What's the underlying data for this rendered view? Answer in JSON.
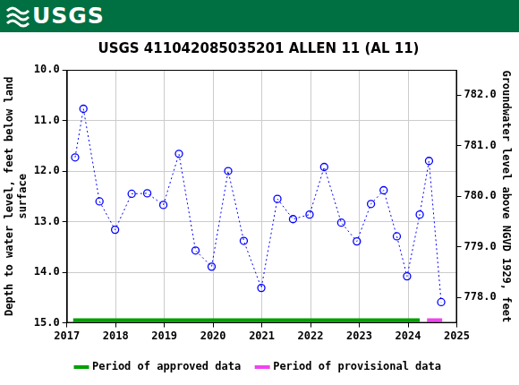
{
  "header": {
    "logo_text": "USGS"
  },
  "chart_data": {
    "type": "line",
    "title": "USGS 411042085035201 ALLEN 11 (AL 11)",
    "y_label": [
      "Depth to water level, feet below land",
      "surface"
    ],
    "y2_label": "Groundwater level above NGVD 1929, feet",
    "x": [
      2017.17,
      2017.34,
      2017.67,
      2017.99,
      2018.33,
      2018.65,
      2018.98,
      2019.3,
      2019.64,
      2019.97,
      2020.31,
      2020.63,
      2020.99,
      2021.32,
      2021.64,
      2021.98,
      2022.28,
      2022.63,
      2022.95,
      2023.24,
      2023.5,
      2023.77,
      2023.98,
      2024.24,
      2024.43,
      2024.68
    ],
    "values": [
      11.73,
      10.77,
      12.6,
      13.16,
      12.45,
      12.44,
      12.67,
      11.66,
      13.57,
      13.89,
      12.0,
      13.38,
      14.31,
      12.55,
      12.95,
      12.86,
      11.92,
      13.02,
      13.39,
      12.65,
      12.38,
      13.29,
      14.08,
      12.86,
      11.8,
      14.59
    ],
    "color": "#0000ff",
    "marker": "circle",
    "line_style": "dotted",
    "xlim": [
      2017,
      2025
    ],
    "xticks": [
      2017,
      2018,
      2019,
      2020,
      2021,
      2022,
      2023,
      2024,
      2025
    ],
    "ylim": [
      15,
      10
    ],
    "yticks": [
      {
        "value": 10,
        "label": "10.0"
      },
      {
        "value": 11,
        "label": "11.0"
      },
      {
        "value": 12,
        "label": "12.0"
      },
      {
        "value": 13,
        "label": "13.0"
      },
      {
        "value": 14,
        "label": "14.0"
      },
      {
        "value": 15,
        "label": "15.0"
      }
    ],
    "y2lim": [
      777.5,
      782.5
    ],
    "y2ticks": [
      {
        "value": 778,
        "label": "778.0"
      },
      {
        "value": 779,
        "label": "779.0"
      },
      {
        "value": 780,
        "label": "780.0"
      },
      {
        "value": 781,
        "label": "781.0"
      },
      {
        "value": 782,
        "label": "782.0"
      }
    ],
    "grid": true,
    "legend": "bottom",
    "periods": [
      {
        "name": "Period of approved data",
        "color": "#00a000",
        "start": 2017.13,
        "end": 2024.24
      },
      {
        "name": "Period of provisional data",
        "color": "#ee44ee",
        "start": 2024.39,
        "end": 2024.7
      }
    ]
  }
}
